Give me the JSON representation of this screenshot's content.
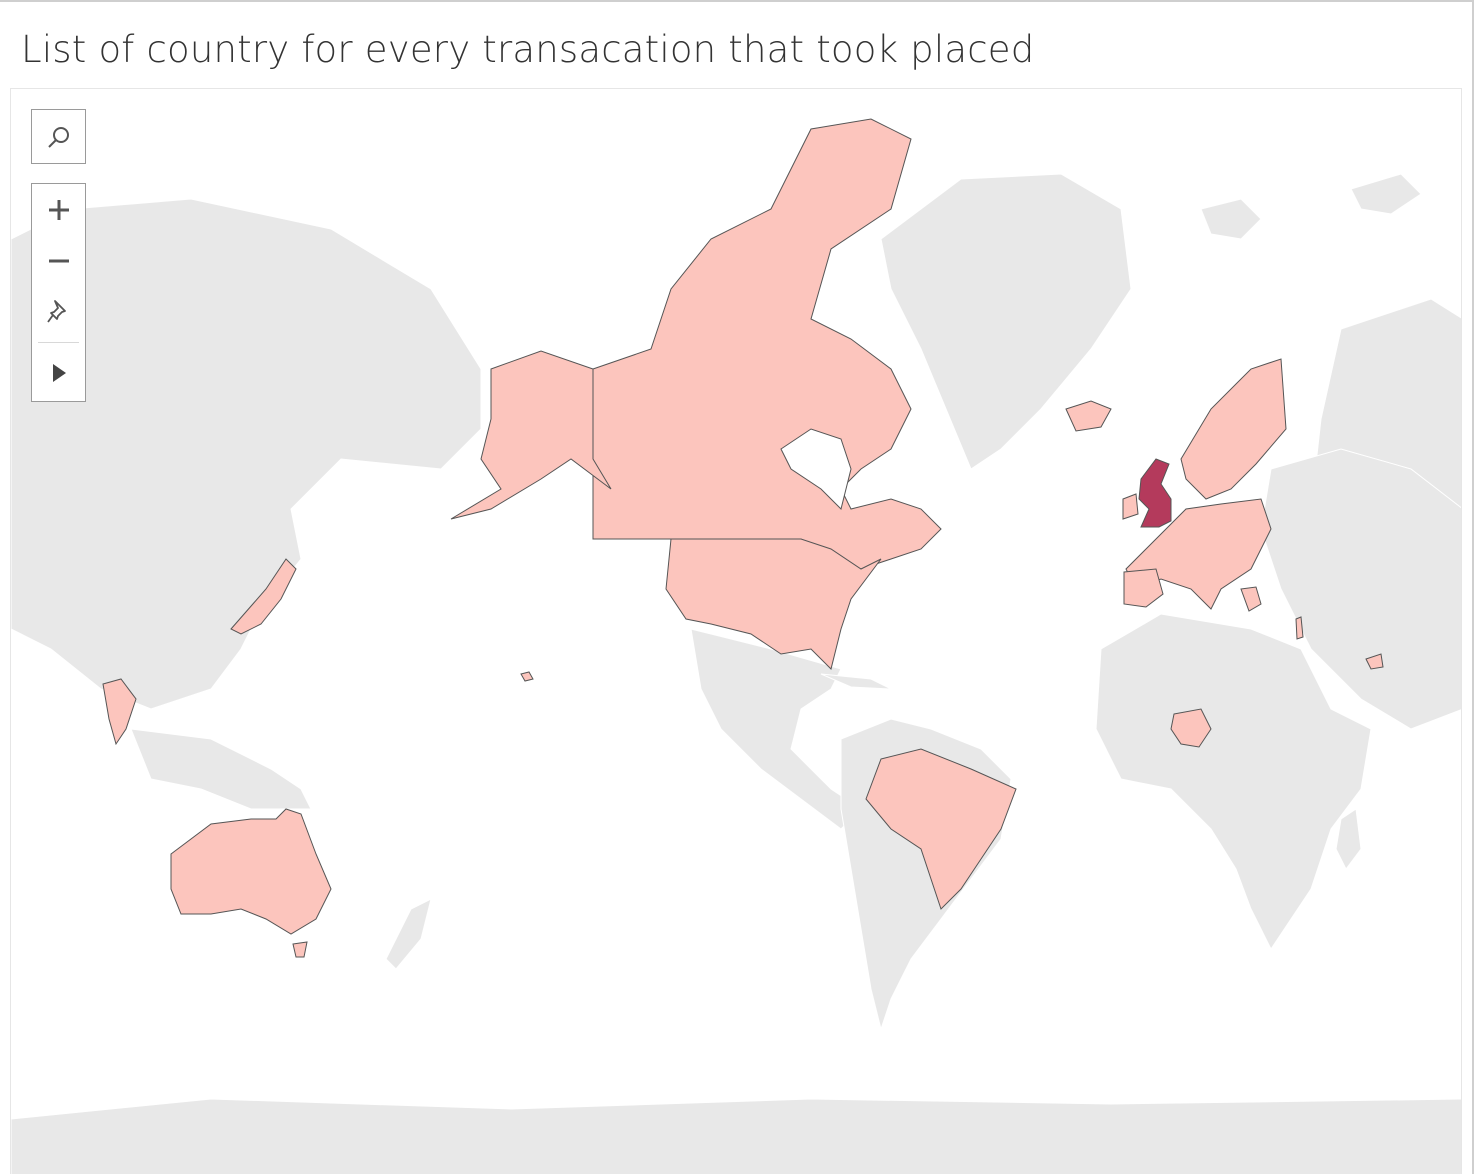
{
  "title": "List of country for every transacation that took placed",
  "map": {
    "highlighted_countries": [
      "United Kingdom"
    ],
    "colors": {
      "background_land": "#e8e8e8",
      "country_fill": "#fcc5bd",
      "highlight_fill": "#b43a5c",
      "border": "#555555"
    },
    "toolbar": {
      "search_icon": "search-icon",
      "zoom_in_icon": "plus-icon",
      "zoom_out_icon": "minus-icon",
      "pin_icon": "pin-icon",
      "play_icon": "play-icon"
    }
  }
}
